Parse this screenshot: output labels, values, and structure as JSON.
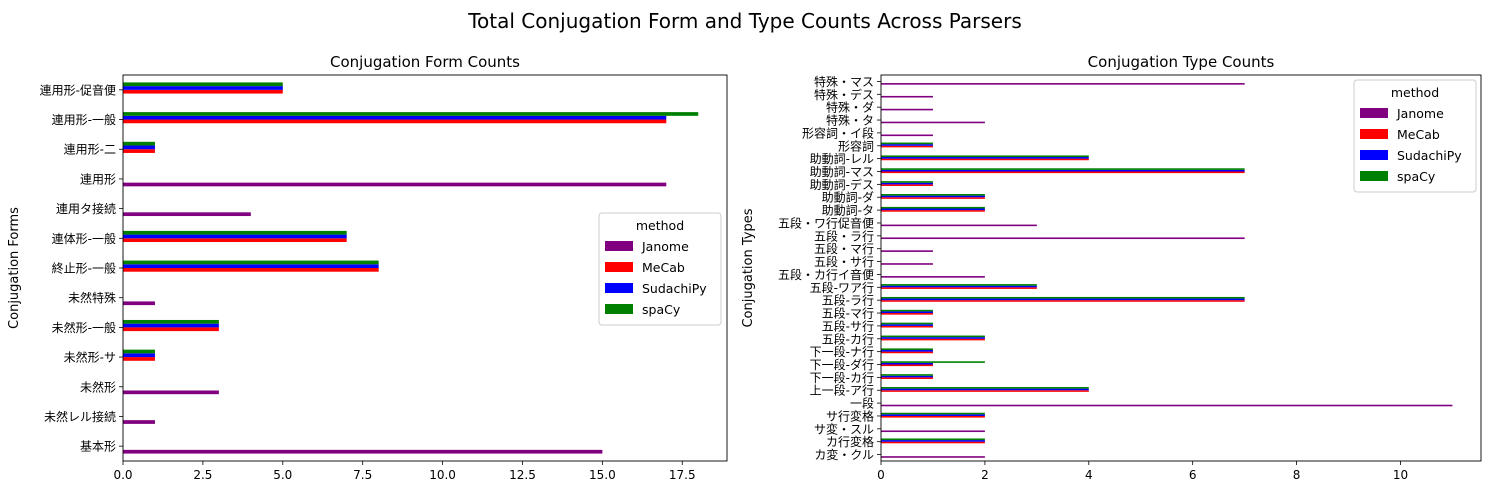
{
  "suptitle": "Total Conjugation Form and Type Counts Across Parsers",
  "colors": {
    "Janome": "#800080",
    "MeCab": "#ff0000",
    "SudachiPy": "#0000ff",
    "spaCy": "#008000"
  },
  "chart_data": [
    {
      "type": "bar",
      "orientation": "horizontal",
      "title": "Conjugation Form Counts",
      "xlabel": "",
      "ylabel": "Conjugation Forms",
      "xlim": [
        0,
        18.9
      ],
      "xticks": [
        "0.0",
        "2.5",
        "5.0",
        "7.5",
        "10.0",
        "12.5",
        "15.0",
        "17.5"
      ],
      "xtick_values": [
        0,
        2.5,
        5,
        7.5,
        10,
        12.5,
        15,
        17.5
      ],
      "categories": [
        "連用形-促音便",
        "連用形-一般",
        "連用形-二",
        "連用形",
        "連用タ接続",
        "連体形-一般",
        "終止形-一般",
        "未然特殊",
        "未然形-一般",
        "未然形-サ",
        "未然形",
        "未然レル接続",
        "基本形"
      ],
      "series": [
        {
          "name": "Janome",
          "values": [
            0,
            0,
            0,
            17,
            4,
            0,
            0,
            1,
            0,
            0,
            3,
            1,
            15
          ]
        },
        {
          "name": "MeCab",
          "values": [
            5,
            17,
            1,
            0,
            0,
            7,
            8,
            0,
            3,
            1,
            0,
            0,
            0
          ]
        },
        {
          "name": "SudachiPy",
          "values": [
            5,
            17,
            1,
            0,
            0,
            7,
            8,
            0,
            3,
            1,
            0,
            0,
            0
          ]
        },
        {
          "name": "spaCy",
          "values": [
            5,
            18,
            1,
            0,
            0,
            7,
            8,
            0,
            3,
            1,
            0,
            0,
            0
          ]
        }
      ],
      "legend": {
        "title": "method",
        "loc": "center-right"
      }
    },
    {
      "type": "bar",
      "orientation": "horizontal",
      "title": "Conjugation Type Counts",
      "xlabel": "",
      "ylabel": "Conjugation Types",
      "xlim": [
        0,
        11.55
      ],
      "xticks": [
        "0",
        "2",
        "4",
        "6",
        "8",
        "10"
      ],
      "xtick_values": [
        0,
        2,
        4,
        6,
        8,
        10
      ],
      "categories": [
        "特殊・マス",
        "特殊・デス",
        "特殊・ダ",
        "特殊・タ",
        "形容詞・イ段",
        "形容詞",
        "助動詞-レル",
        "助動詞-マス",
        "助動詞-デス",
        "助動詞-ダ",
        "助動詞-タ",
        "五段・ワ行促音便",
        "五段・ラ行",
        "五段・マ行",
        "五段・サ行",
        "五段・カ行イ音便",
        "五段-ワア行",
        "五段-ラ行",
        "五段-マ行",
        "五段-サ行",
        "五段-カ行",
        "下一段-ナ行",
        "下一段-ダ行",
        "下一段-カ行",
        "上一段-ア行",
        "一段",
        "サ行変格",
        "サ変・スル",
        "カ行変格",
        "カ変・クル"
      ],
      "series": [
        {
          "name": "Janome",
          "values": [
            7,
            1,
            1,
            2,
            1,
            0,
            0,
            0,
            0,
            0,
            0,
            3,
            7,
            1,
            1,
            2,
            0,
            0,
            0,
            0,
            0,
            0,
            0,
            0,
            0,
            11,
            0,
            2,
            0,
            2
          ]
        },
        {
          "name": "MeCab",
          "values": [
            0,
            0,
            0,
            0,
            0,
            1,
            4,
            7,
            1,
            2,
            2,
            0,
            0,
            0,
            0,
            0,
            3,
            7,
            1,
            1,
            2,
            1,
            1,
            1,
            4,
            0,
            2,
            0,
            2,
            0
          ]
        },
        {
          "name": "SudachiPy",
          "values": [
            0,
            0,
            0,
            0,
            0,
            1,
            4,
            7,
            1,
            2,
            2,
            0,
            0,
            0,
            0,
            0,
            3,
            7,
            1,
            1,
            2,
            1,
            1,
            1,
            4,
            0,
            2,
            0,
            2,
            0
          ]
        },
        {
          "name": "spaCy",
          "values": [
            0,
            0,
            0,
            0,
            0,
            1,
            4,
            7,
            1,
            2,
            2,
            0,
            0,
            0,
            0,
            0,
            3,
            7,
            1,
            1,
            2,
            1,
            2,
            1,
            4,
            0,
            2,
            0,
            2,
            0
          ]
        }
      ],
      "legend": {
        "title": "method",
        "loc": "upper-right"
      }
    }
  ]
}
